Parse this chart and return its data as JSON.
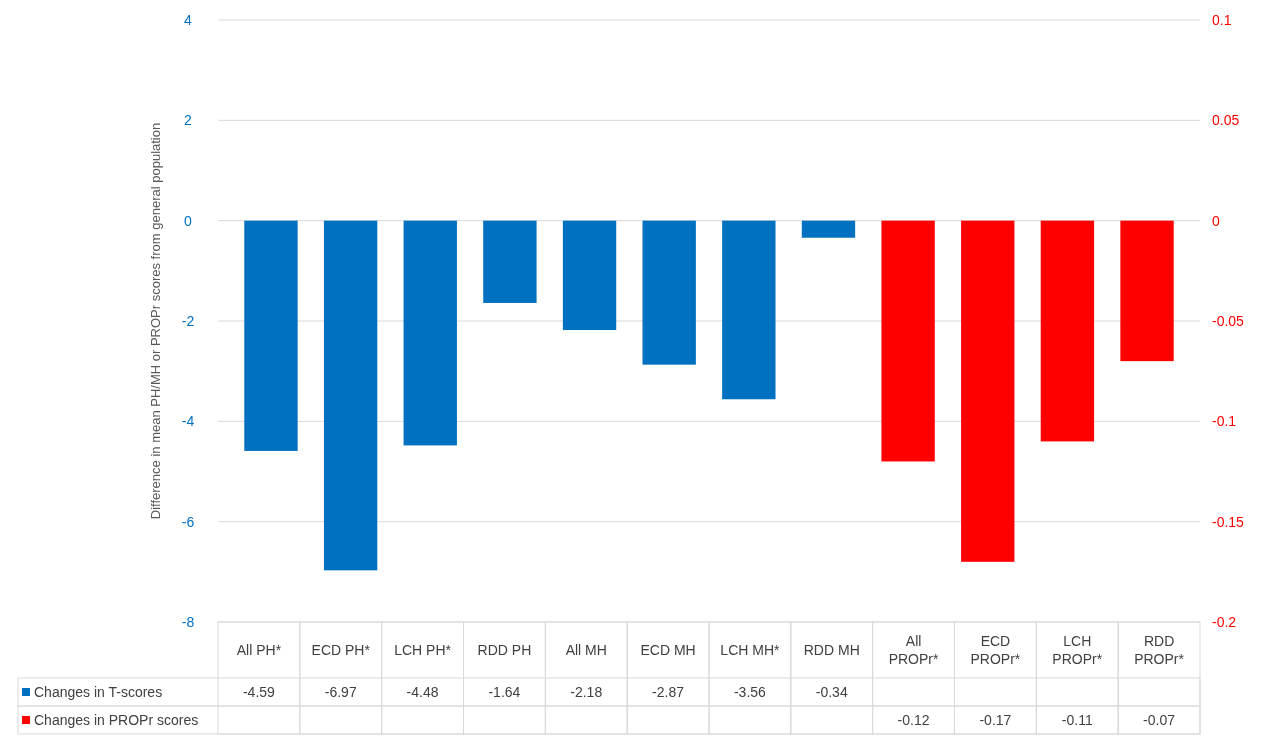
{
  "chart_data": {
    "type": "bar",
    "ylabel": "Difference in mean PH/MH or PROPr scores  from general population",
    "categories": [
      "All PH*",
      "ECD PH*",
      "LCH PH*",
      "RDD PH",
      "All MH",
      "ECD MH",
      "LCH MH*",
      "RDD MH",
      "All PROPr*",
      "ECD PROPr*",
      "LCH PROPr*",
      "RDD PROPr*"
    ],
    "series": [
      {
        "name": "Changes in T-scores",
        "color": "#0070c0",
        "values": [
          -4.59,
          -6.97,
          -4.48,
          -1.64,
          -2.18,
          -2.87,
          -3.56,
          -0.34,
          null,
          null,
          null,
          null
        ]
      },
      {
        "name": "Changes in PROPr scores",
        "color": "#ff0000",
        "axis": "y2",
        "values": [
          null,
          null,
          null,
          null,
          null,
          null,
          null,
          null,
          -0.12,
          -0.17,
          -0.11,
          -0.07
        ]
      }
    ],
    "ylim": [
      -8,
      4
    ],
    "yticks": [
      -8,
      -6,
      -4,
      -2,
      0,
      2,
      4
    ],
    "y2lim": [
      -0.2,
      0.1
    ],
    "y2ticks": [
      -0.2,
      -0.15,
      -0.1,
      -0.05,
      0,
      0.05,
      0.1
    ],
    "grid": "y",
    "data_labels": true,
    "legend": "bottom"
  }
}
